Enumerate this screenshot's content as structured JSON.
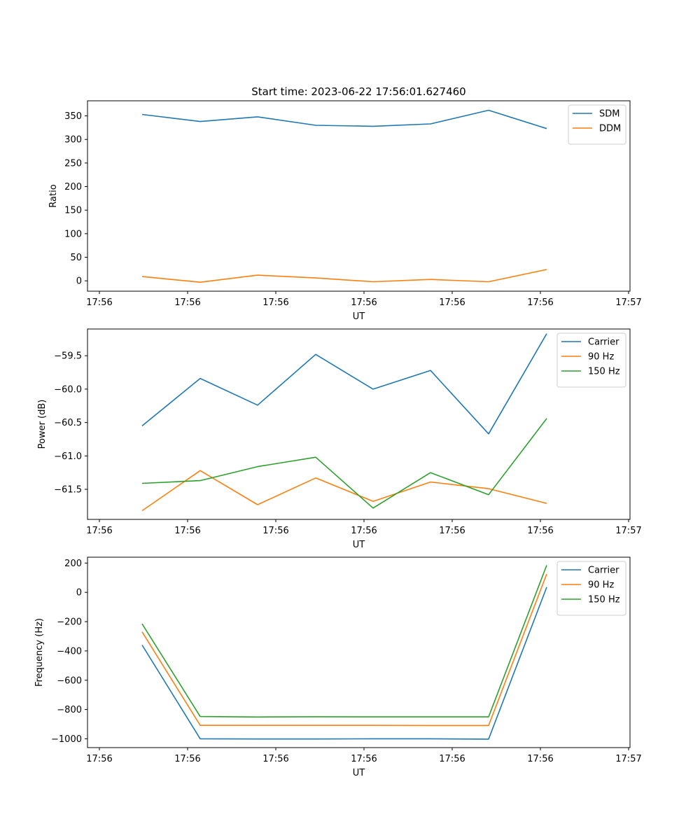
{
  "figure": {
    "title": "Start time: 2023-06-22 17:56:01.627460"
  },
  "chart_data": [
    {
      "type": "line",
      "title": "Start time: 2023-06-22 17:56:01.627460",
      "xlabel": "UT",
      "ylabel": "Ratio",
      "x_tick_labels": [
        "17:56",
        "17:56",
        "17:56",
        "17:56",
        "17:56",
        "17:56",
        "17:56",
        "17:57"
      ],
      "y_ticks": [
        0,
        50,
        100,
        150,
        200,
        250,
        300,
        350
      ],
      "y_tick_labels": [
        "0",
        "50",
        "100",
        "150",
        "200",
        "250",
        "300",
        "350"
      ],
      "ylim": [
        -22,
        382
      ],
      "legend_position": "top-right",
      "grid": false,
      "series": [
        {
          "name": "SDM",
          "color": "#1f77b4",
          "values": [
            353,
            338,
            348,
            330,
            328,
            333,
            362,
            323
          ]
        },
        {
          "name": "DDM",
          "color": "#ff7f0e",
          "values": [
            9,
            -3,
            12,
            6,
            -2,
            3,
            -2,
            24
          ]
        }
      ]
    },
    {
      "type": "line",
      "xlabel": "UT",
      "ylabel": "Power (dB)",
      "x_tick_labels": [
        "17:56",
        "17:56",
        "17:56",
        "17:56",
        "17:56",
        "17:56",
        "17:56",
        "17:57"
      ],
      "y_ticks": [
        -61.5,
        -61.0,
        -60.5,
        -60.0,
        -59.5
      ],
      "y_tick_labels": [
        "−61.5",
        "−61.0",
        "−60.5",
        "−60.0",
        "−59.5"
      ],
      "ylim": [
        -61.95,
        -59.1
      ],
      "legend_position": "top-right",
      "grid": false,
      "series": [
        {
          "name": "Carrier",
          "color": "#1f77b4",
          "values": [
            -60.55,
            -59.84,
            -60.24,
            -59.48,
            -60.0,
            -59.72,
            -60.67,
            -59.17
          ]
        },
        {
          "name": "90 Hz",
          "color": "#ff7f0e",
          "values": [
            -61.82,
            -61.22,
            -61.73,
            -61.33,
            -61.68,
            -61.39,
            -61.49,
            -61.71
          ]
        },
        {
          "name": "150 Hz",
          "color": "#2ca02c",
          "values": [
            -61.41,
            -61.37,
            -61.16,
            -61.02,
            -61.78,
            -61.25,
            -61.58,
            -60.44
          ]
        }
      ]
    },
    {
      "type": "line",
      "xlabel": "UT",
      "ylabel": "Frequency (Hz)",
      "x_tick_labels": [
        "17:56",
        "17:56",
        "17:56",
        "17:56",
        "17:56",
        "17:56",
        "17:56",
        "17:57"
      ],
      "y_ticks": [
        -1000,
        -800,
        -600,
        -400,
        -200,
        0,
        200
      ],
      "y_tick_labels": [
        "−1000",
        "−800",
        "−600",
        "−400",
        "−200",
        "0",
        "200"
      ],
      "ylim": [
        -1060,
        240
      ],
      "legend_position": "top-right",
      "grid": false,
      "series": [
        {
          "name": "Carrier",
          "color": "#1f77b4",
          "values": [
            -360,
            -1000,
            -1001,
            -1001,
            -1000,
            -1000,
            -1002,
            35
          ]
        },
        {
          "name": "90 Hz",
          "color": "#ff7f0e",
          "values": [
            -270,
            -908,
            -908,
            -908,
            -908,
            -909,
            -909,
            125
          ]
        },
        {
          "name": "150 Hz",
          "color": "#2ca02c",
          "values": [
            -215,
            -848,
            -851,
            -849,
            -850,
            -850,
            -850,
            185
          ]
        }
      ]
    }
  ]
}
